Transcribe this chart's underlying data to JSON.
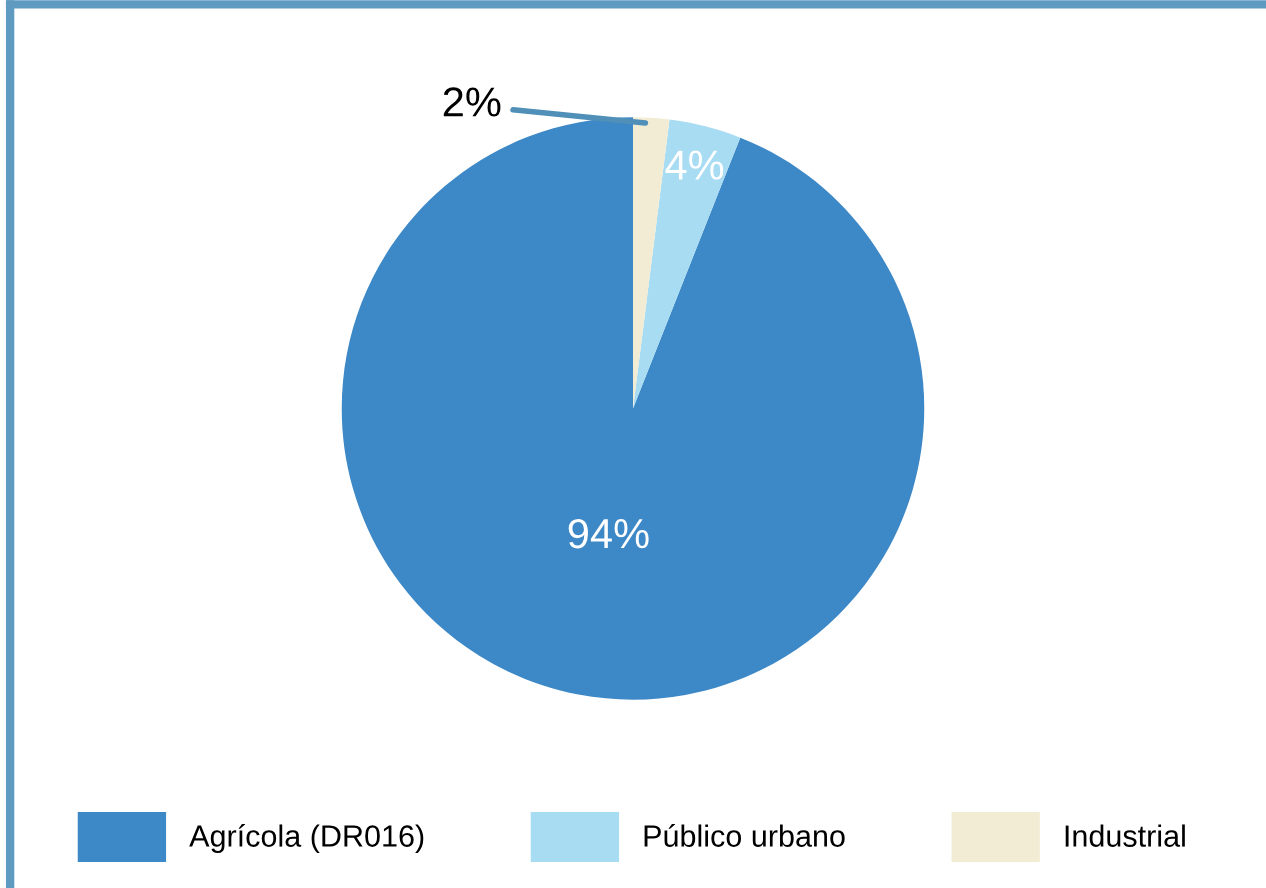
{
  "chart_data": {
    "type": "pie",
    "categories": [
      "Agrícola (DR016)",
      "Público urbano",
      "Industrial"
    ],
    "values": [
      94,
      4,
      2
    ],
    "colors": [
      "#3d88c6",
      "#a8dcf3",
      "#f2ecd5"
    ],
    "value_labels": [
      "94%",
      "4%",
      "2%"
    ],
    "legend": "bottom"
  }
}
